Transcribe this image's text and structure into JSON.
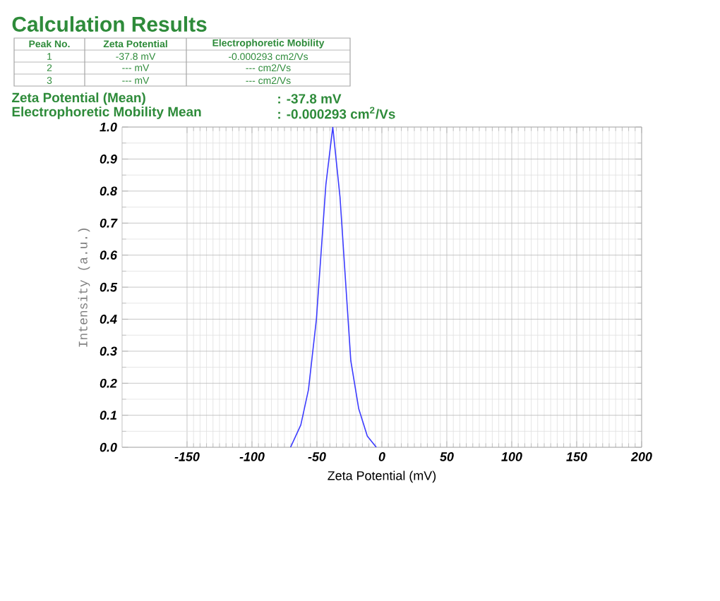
{
  "chart_data": {
    "type": "line",
    "title": "Calculation Results",
    "annotations": [
      "Peak No.",
      "Zeta Potential",
      "Electrophoretic Mobility",
      "1",
      "-37.8 mV",
      "-0.000293 cm2/Vs",
      "2",
      "--- mV",
      "--- cm2/Vs",
      "3",
      "--- mV",
      "--- cm2/Vs",
      "Zeta Potential (Mean)",
      ":  -37.8 mV",
      "Electrophoretic Mobility Mean",
      ":  -0.000293 cm$^{2}$/Vs"
    ],
    "xlabel": "Zeta Potential (mV)",
    "ylabel": "Intensity (a.u.)",
    "x": [
      -70.3,
      -62.4,
      -56.5,
      -50.4,
      -43.1,
      -37.8,
      -32.2,
      -23.9,
      -17.8,
      -11.2,
      -4.3
    ],
    "series": [
      {
        "color": "#3c3cff",
        "values": [
          0.0,
          0.07,
          0.18,
          0.4,
          0.82,
          1.0,
          0.78,
          0.27,
          0.12,
          0.035,
          0.0
        ]
      }
    ],
    "xlim": [
      -200,
      200
    ],
    "xticks": [
      -150,
      -100,
      -50,
      0,
      50,
      100,
      150,
      200
    ],
    "ylim": [
      0,
      1
    ],
    "yticks": [
      {
        "value": 0,
        "label": "0.0"
      },
      {
        "value": 0.1,
        "label": "0.1"
      },
      {
        "value": 0.2,
        "label": "0.2"
      },
      {
        "value": 0.3,
        "label": "0.3"
      },
      {
        "value": 0.4,
        "label": "0.4"
      },
      {
        "value": 0.5,
        "label": "0.5"
      },
      {
        "value": 0.6,
        "label": "0.6"
      },
      {
        "value": 0.7,
        "label": "0.7"
      },
      {
        "value": 0.8,
        "label": "0.8"
      },
      {
        "value": 0.9,
        "label": "0.9"
      },
      {
        "value": 1,
        "label": "1.0"
      }
    ],
    "grid": true,
    "marker": "none",
    "line_style": "solid"
  }
}
